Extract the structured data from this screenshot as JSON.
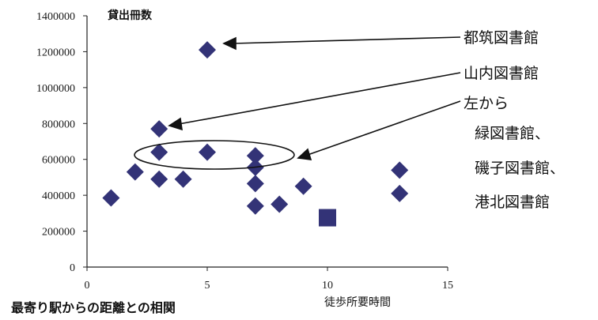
{
  "chart_data": {
    "type": "scatter",
    "ylabel": "貸出冊数",
    "xlabel": "徒歩所要時間",
    "caption": "最寄り駅からの距離との相関",
    "xlim": [
      0,
      15
    ],
    "ylim": [
      0,
      1400000
    ],
    "xticks": [
      "0",
      "5",
      "10",
      "15"
    ],
    "yticks": [
      "0",
      "200000",
      "400000",
      "600000",
      "800000",
      "1000000",
      "1200000",
      "1400000"
    ],
    "marker_color": "#333377",
    "points": [
      {
        "x": 1,
        "y": 385000
      },
      {
        "x": 2,
        "y": 530000
      },
      {
        "x": 3,
        "y": 490000
      },
      {
        "x": 3,
        "y": 640000
      },
      {
        "x": 3,
        "y": 770000
      },
      {
        "x": 4,
        "y": 490000
      },
      {
        "x": 5,
        "y": 1210000
      },
      {
        "x": 5,
        "y": 640000
      },
      {
        "x": 7,
        "y": 620000
      },
      {
        "x": 7,
        "y": 555000
      },
      {
        "x": 7,
        "y": 465000
      },
      {
        "x": 7,
        "y": 340000
      },
      {
        "x": 8,
        "y": 350000
      },
      {
        "x": 9,
        "y": 450000
      },
      {
        "x": 13,
        "y": 540000
      },
      {
        "x": 13,
        "y": 410000
      }
    ],
    "square_points": [
      {
        "x": 10,
        "y": 275000
      }
    ],
    "annotations": [
      {
        "lines": [
          "都筑図書館"
        ]
      },
      {
        "lines": [
          "山内図書館"
        ]
      },
      {
        "lines": [
          "左から",
          "緑図書館、",
          "磯子図書館、",
          "港北図書館"
        ]
      }
    ]
  }
}
